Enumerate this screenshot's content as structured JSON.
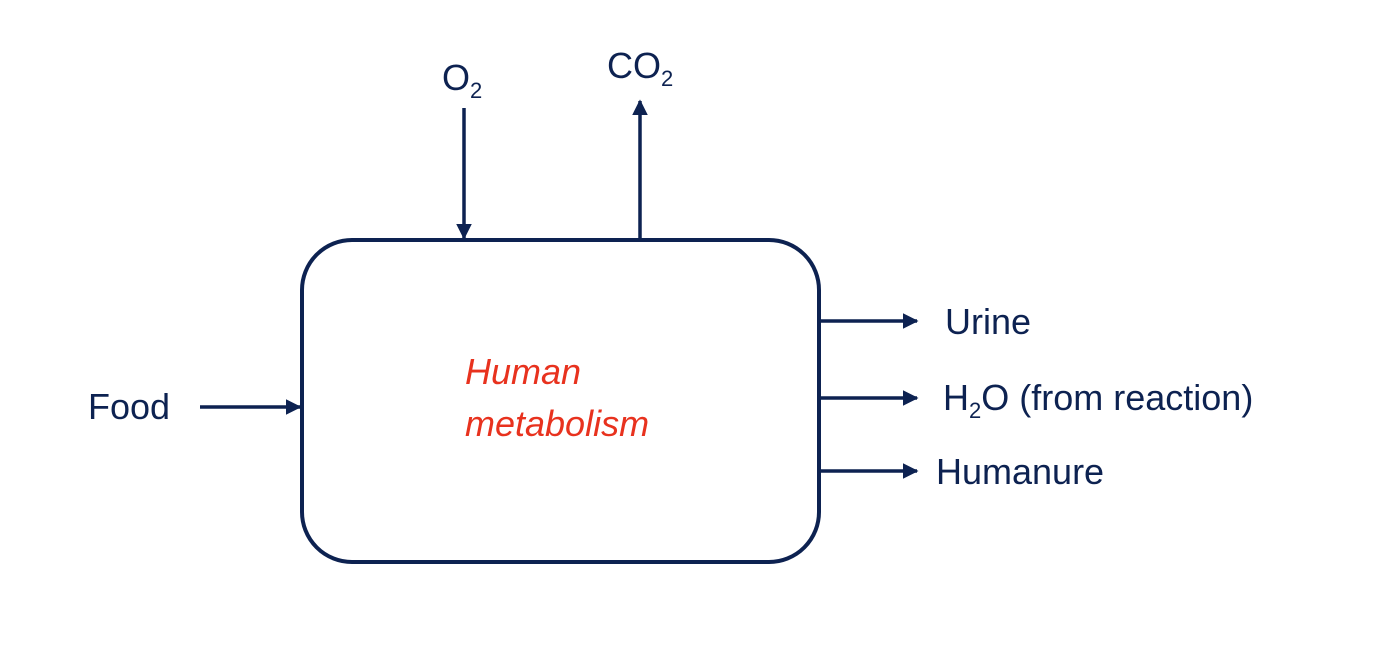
{
  "diagram": {
    "process": {
      "line1": "Human",
      "line2": "metabolism"
    },
    "inputs": {
      "food": "Food",
      "oxygen": {
        "base": "O",
        "sub": "2"
      }
    },
    "outputs": {
      "co2": {
        "base": "CO",
        "sub": "2"
      },
      "urine": "Urine",
      "water": {
        "base": "H",
        "sub": "2",
        "rest": "O (from reaction)"
      },
      "humanure": "Humanure"
    }
  },
  "colors": {
    "stroke": "#0d2251",
    "label": "#0d2251",
    "process_label": "#e8321e",
    "background": "#ffffff"
  }
}
